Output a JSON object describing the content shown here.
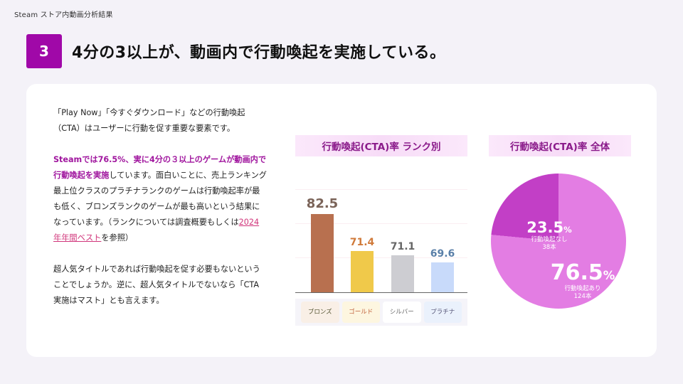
{
  "header": {
    "breadcrumb": "Steam ストア内動画分析結果",
    "section_number": "3",
    "title": "4分の3以上が、動画内で行動喚起を実施している。"
  },
  "body": {
    "p1": "「Play Now」「今すぐダウンロード」などの行動喚起（CTA）はユーザーに行動を促す重要な要素です。",
    "p2_highlight": "Steamでは76.5%、実に4分の３以上のゲームが動画内で行動喚起を実施",
    "p2_rest": "しています。面白いことに、売上ランキング最上位クラスのプラチナランクのゲームは行動喚起率が最も低く、ブロンズランクのゲームが最も高いという結果になっています。（ランクについては調査概要もしくは",
    "p2_link": "2024年年間ベスト",
    "p2_end": "を参照）",
    "p3": "超人気タイトルであれば行動喚起を促す必要もないということでしょうか。逆に、超人気タイトルでないなら「CTA実施はマスト」とも言えます。"
  },
  "colors": {
    "accent": "#a008a8",
    "bronze": "#b8704f",
    "gold": "#f0c94a",
    "silver": "#cdcdd2",
    "platinum": "#c8dafa",
    "pie_yes": "#e37de3",
    "pie_no": "#c23fc6"
  },
  "chart_data": [
    {
      "type": "bar",
      "title": "行動喚起(CTA)率 ランク別",
      "categories": [
        "ブロンズ",
        "ゴールド",
        "シルバー",
        "プラチナ"
      ],
      "values": [
        82.5,
        71.4,
        71.1,
        69.6
      ],
      "value_labels": [
        "82.5",
        "71.4",
        "71.1",
        "69.6"
      ],
      "xlabel": "",
      "ylabel": "",
      "ylim": [
        60,
        90
      ],
      "grid": true,
      "legend": "none"
    },
    {
      "type": "pie",
      "title": "行動喚起(CTA)率 全体",
      "slices": [
        {
          "label": "行動喚起あり",
          "percent": 76.5,
          "count_label": "124本",
          "pct_label": "76.5"
        },
        {
          "label": "行動喚起なし",
          "percent": 23.5,
          "count_label": "38本",
          "pct_label": "23.5"
        }
      ],
      "percent_sign": "%"
    }
  ]
}
